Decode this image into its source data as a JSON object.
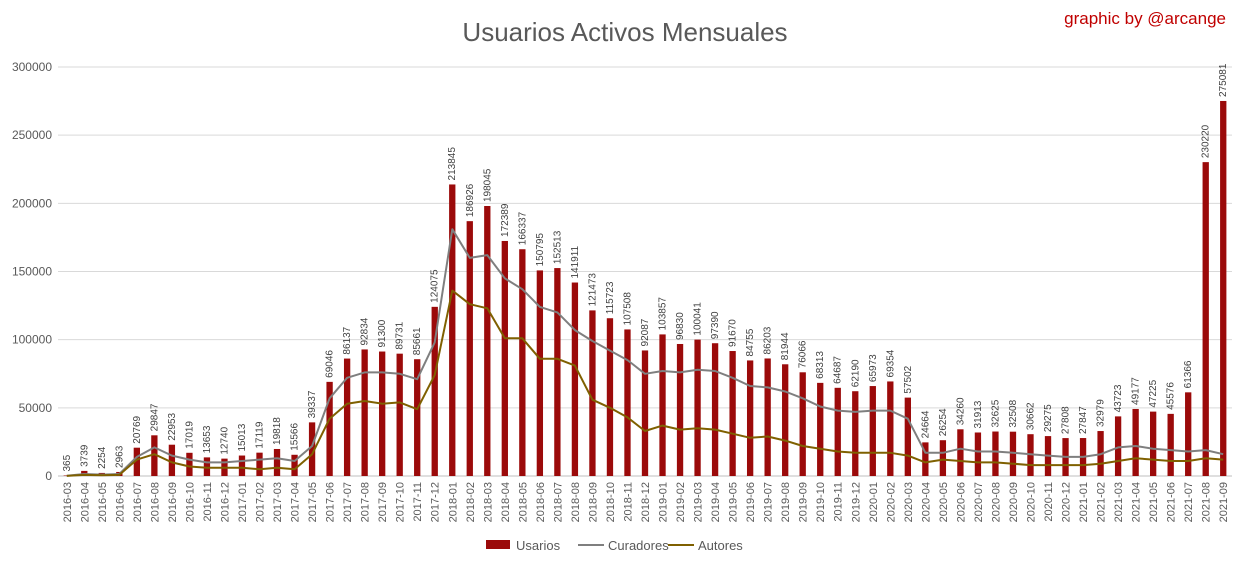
{
  "chart_data": {
    "type": "bar",
    "title": "Usuarios Activos Mensuales",
    "credit": "graphic by @arcange",
    "xlabel": "",
    "ylabel": "",
    "ylim": [
      0,
      300000
    ],
    "yticks": [
      0,
      50000,
      100000,
      150000,
      200000,
      250000,
      300000
    ],
    "grid": true,
    "legend_position": "bottom",
    "colors": {
      "usarios": "#9b0a0a",
      "curadores": "#7f7f7f",
      "autores": "#7f6000"
    },
    "categories": [
      "2016-03",
      "2016-04",
      "2016-05",
      "2016-06",
      "2016-07",
      "2016-08",
      "2016-09",
      "2016-10",
      "2016-11",
      "2016-12",
      "2017-01",
      "2017-02",
      "2017-03",
      "2017-04",
      "2017-05",
      "2017-06",
      "2017-07",
      "2017-08",
      "2017-09",
      "2017-10",
      "2017-11",
      "2017-12",
      "2018-01",
      "2018-02",
      "2018-03",
      "2018-04",
      "2018-05",
      "2018-06",
      "2018-07",
      "2018-08",
      "2018-09",
      "2018-10",
      "2018-11",
      "2018-12",
      "2019-01",
      "2019-02",
      "2019-03",
      "2019-04",
      "2019-05",
      "2019-06",
      "2019-07",
      "2019-08",
      "2019-09",
      "2019-10",
      "2019-11",
      "2019-12",
      "2020-01",
      "2020-02",
      "2020-03",
      "2020-04",
      "2020-05",
      "2020-06",
      "2020-07",
      "2020-08",
      "2020-09",
      "2020-10",
      "2020-11",
      "2020-12",
      "2021-01",
      "2021-02",
      "2021-03",
      "2021-04",
      "2021-05",
      "2021-06",
      "2021-07",
      "2021-08",
      "2021-09"
    ],
    "series": [
      {
        "name": "Usarios",
        "kind": "bar",
        "values": [
          365,
          3739,
          2254,
          2963,
          20769,
          29847,
          22953,
          17019,
          13653,
          12740,
          15013,
          17119,
          19818,
          15566,
          39337,
          69046,
          86137,
          92834,
          91300,
          89731,
          85661,
          124075,
          213845,
          186926,
          198045,
          172389,
          166337,
          150795,
          152513,
          141911,
          121473,
          115723,
          107508,
          92087,
          103857,
          96830,
          100041,
          97390,
          91670,
          84755,
          86203,
          81944,
          76066,
          68313,
          64687,
          62190,
          65973,
          69354,
          57502,
          24664,
          26254,
          34260,
          31913,
          32625,
          32508,
          30662,
          29275,
          27808,
          27847,
          32979,
          43723,
          49177,
          47225,
          45576,
          61366,
          230220,
          275081
        ]
      },
      {
        "name": "Curadores",
        "kind": "line",
        "values": [
          200,
          1500,
          1000,
          1500,
          14000,
          21000,
          15000,
          12000,
          10000,
          10000,
          11000,
          12000,
          13000,
          11000,
          22000,
          57000,
          72000,
          76000,
          76000,
          75000,
          71000,
          98000,
          181000,
          160000,
          162000,
          145000,
          137000,
          124000,
          120000,
          107000,
          99000,
          92000,
          85000,
          75000,
          77000,
          76000,
          78000,
          77000,
          72000,
          66000,
          65000,
          62000,
          57000,
          51000,
          48000,
          47000,
          48000,
          48000,
          42000,
          17000,
          17000,
          20000,
          18000,
          18000,
          17000,
          16000,
          15000,
          14000,
          14000,
          16000,
          21000,
          22000,
          20000,
          19000,
          18000,
          19000,
          16000
        ]
      },
      {
        "name": "Autores",
        "kind": "line",
        "values": [
          100,
          800,
          500,
          800,
          12000,
          16000,
          10000,
          7000,
          6000,
          6000,
          6000,
          5000,
          6000,
          5000,
          16000,
          42000,
          53000,
          55000,
          53000,
          54000,
          49000,
          74000,
          136000,
          126000,
          123000,
          101000,
          101000,
          86000,
          86000,
          81000,
          56000,
          50000,
          43000,
          33000,
          37000,
          34000,
          35000,
          34000,
          31000,
          28000,
          29000,
          26000,
          22000,
          20000,
          18000,
          17000,
          17000,
          17000,
          15000,
          10000,
          12000,
          11000,
          10000,
          10000,
          9000,
          8000,
          8000,
          8000,
          8000,
          9000,
          11000,
          13000,
          12000,
          11000,
          11000,
          13000,
          12000
        ]
      }
    ]
  }
}
